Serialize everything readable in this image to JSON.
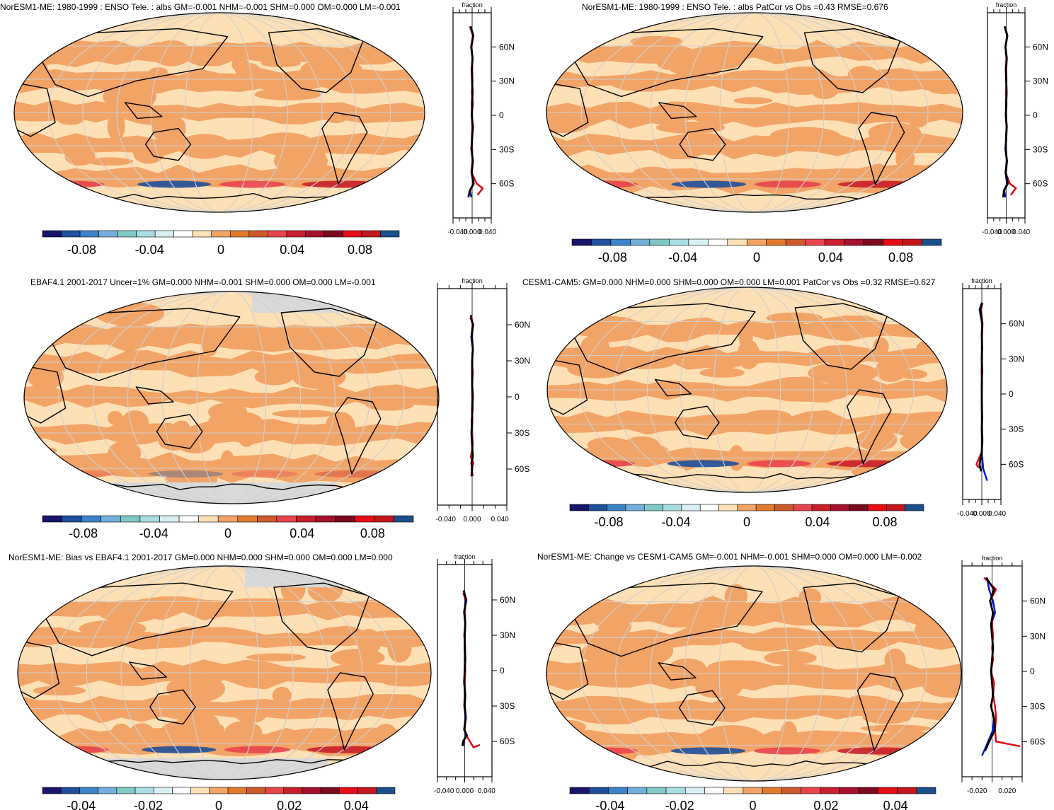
{
  "colorbar_colors": [
    "#18146b",
    "#1f4f9a",
    "#3c83c8",
    "#74aedc",
    "#7fc8c5",
    "#a8dde3",
    "#d8f0f4",
    "#ffffff",
    "#fde0b6",
    "#f2a366",
    "#e07b2c",
    "#ce5a2c",
    "#e8444c",
    "#c81f2a",
    "#a5112c",
    "#7c0a1f",
    "#e60d16",
    "#c4161d",
    "#1a4f8a"
  ],
  "map_fill_colors": {
    "light": "#fde0b6",
    "mid": "#f2a366",
    "ocean_frame": "#fde0b6",
    "missing": "#d9d9d9"
  },
  "line_colors": {
    "model": "#000000",
    "obs": "#e0000c",
    "alt": "#0012d6"
  },
  "panels": [
    {
      "id": "p1",
      "title": "NorESM1-ME: 1980-1999 : ENSO Tele. : albs GM=-0.001 NHM=-0.001 SHM=0.000 OM=0.000 LM=-0.001",
      "cb_labels": [
        "-0.08",
        "-0.04",
        "0",
        "0.04",
        "0.08"
      ],
      "zonal_unit": "fraction",
      "zonal_xticks": [
        "-0.040",
        "0.000",
        "0.040"
      ],
      "lat_labels": [
        "60N",
        "30N",
        "0",
        "30S",
        "60S"
      ],
      "chart_data": {
        "type": "line",
        "title": "NorESM1-ME: 1980-1999 : ENSO Tele. : albs GM=-0.001 NHM=-0.001 SHM=0.000 OM=0.000 LM=-0.001",
        "xlabel": "fraction",
        "xlim": [
          -0.05,
          0.05
        ],
        "ylim": [
          -90,
          90
        ],
        "series": [
          {
            "role": "model",
            "x": [
              -0.004,
              0.003,
              -0.002,
              0.001,
              -0.001,
              0.0,
              0.001,
              0.0,
              -0.001,
              0.001,
              0.0,
              -0.002,
              0.002,
              -0.001,
              0.004,
              -0.006,
              -0.01
            ],
            "y": [
              78,
              70,
              60,
              50,
              40,
              30,
              20,
              10,
              0,
              -10,
              -20,
              -30,
              -40,
              -50,
              -60,
              -66,
              -72
            ]
          },
          {
            "role": "obs",
            "x": [
              -0.006,
              0.002,
              -0.003,
              0.001,
              0.0,
              0.001,
              -0.001,
              0.002,
              -0.001,
              0.003,
              0.0,
              -0.001,
              0.001,
              -0.002,
              0.012,
              0.028,
              0.014
            ],
            "y": [
              78,
              70,
              60,
              50,
              40,
              30,
              20,
              10,
              0,
              -10,
              -20,
              -30,
              -40,
              -50,
              -60,
              -64,
              -70
            ]
          },
          {
            "role": "alt",
            "x": [
              -0.005,
              0.002,
              -0.002,
              0.001,
              0.0,
              0.0,
              0.001,
              -0.001,
              0.0,
              0.001,
              -0.001,
              0.0,
              0.001,
              -0.002,
              0.003,
              -0.006,
              -0.002
            ],
            "y": [
              78,
              70,
              60,
              50,
              40,
              30,
              20,
              10,
              0,
              -10,
              -20,
              -30,
              -40,
              -50,
              -60,
              -66,
              -72
            ]
          }
        ]
      }
    },
    {
      "id": "p2",
      "title": "NorESM1-ME: 1980-1999 : ENSO Tele. : albs PatCor vs Obs =0.43 RMSE=0.676",
      "cb_labels": [
        "-0.08",
        "-0.04",
        "0",
        "0.04",
        "0.08"
      ],
      "zonal_unit": "fraction",
      "zonal_xticks": [
        "-0.040",
        "0.000",
        "0.040"
      ],
      "lat_labels": [
        "60N",
        "30N",
        "0",
        "30S",
        "60S"
      ],
      "chart_data": {
        "type": "line",
        "title": "NorESM1-ME: 1980-1999 : ENSO Tele. : albs PatCor vs Obs =0.43 RMSE=0.676",
        "xlabel": "fraction",
        "xlim": [
          -0.05,
          0.05
        ],
        "ylim": [
          -90,
          90
        ],
        "series": [
          {
            "role": "model",
            "x": [
              -0.004,
              0.003,
              -0.002,
              0.001,
              -0.001,
              0.0,
              0.001,
              0.0,
              -0.001,
              0.001,
              0.0,
              -0.002,
              0.002,
              -0.001,
              0.004,
              -0.006,
              -0.008
            ],
            "y": [
              78,
              70,
              60,
              50,
              40,
              30,
              20,
              10,
              0,
              -10,
              -20,
              -30,
              -40,
              -50,
              -60,
              -66,
              -72
            ]
          },
          {
            "role": "obs",
            "x": [
              -0.005,
              0.003,
              -0.002,
              0.002,
              0.0,
              0.001,
              -0.001,
              0.001,
              -0.001,
              0.002,
              0.0,
              -0.001,
              0.002,
              -0.002,
              0.01,
              0.026,
              0.012
            ],
            "y": [
              78,
              70,
              60,
              50,
              40,
              30,
              20,
              10,
              0,
              -10,
              -20,
              -30,
              -40,
              -50,
              -60,
              -64,
              -70
            ]
          },
          {
            "role": "alt",
            "x": [
              -0.004,
              0.002,
              -0.002,
              0.001,
              0.0,
              0.0,
              0.001,
              -0.001,
              0.0,
              0.001,
              -0.001,
              0.0,
              0.001,
              -0.002,
              0.002,
              -0.005,
              -0.002
            ],
            "y": [
              78,
              70,
              60,
              50,
              40,
              30,
              20,
              10,
              0,
              -10,
              -20,
              -30,
              -40,
              -50,
              -60,
              -66,
              -72
            ]
          }
        ]
      }
    },
    {
      "id": "p3",
      "title": "EBAF4.1 2001-2017 Uncer=1% GM=0.000 NHM=-0.001 SHM=0.000 OM=0.000 LM=-0.001",
      "cb_labels": [
        "-0.08",
        "-0.04",
        "0",
        "0.04",
        "0.08"
      ],
      "zonal_unit": "fraction",
      "zonal_xticks": [
        "-0.040",
        "0.000",
        "0.040"
      ],
      "lat_labels": [
        "60N",
        "30N",
        "0",
        "30S",
        "60S"
      ],
      "chart_data": {
        "type": "line",
        "title": "EBAF4.1 2001-2017 Uncer=1% GM=0.000 NHM=-0.001 SHM=0.000 OM=0.000 LM=-0.001",
        "xlabel": "fraction",
        "xlim": [
          -0.05,
          0.05
        ],
        "ylim": [
          -90,
          90
        ],
        "series": [
          {
            "role": "model",
            "x": [
              -0.002,
              0.001,
              -0.001,
              0.001,
              0.0,
              0.0,
              0.0,
              0.001,
              0.0,
              0.0,
              -0.001,
              0.0,
              0.001,
              -0.001,
              0.0,
              -0.001
            ],
            "y": [
              68,
              60,
              50,
              40,
              30,
              20,
              10,
              0,
              -10,
              -20,
              -30,
              -40,
              -50,
              -55,
              -60,
              -66
            ]
          },
          {
            "role": "obs",
            "x": [
              -0.003,
              0.002,
              -0.001,
              0.001,
              0.0,
              0.001,
              0.0,
              0.0,
              0.001,
              -0.001,
              0.0,
              0.001,
              -0.002,
              0.002,
              -0.001,
              0.001
            ],
            "y": [
              66,
              60,
              50,
              40,
              30,
              20,
              10,
              0,
              -10,
              -20,
              -30,
              -40,
              -50,
              -55,
              -60,
              -66
            ]
          },
          {
            "role": "alt",
            "x": [
              -0.002,
              0.001,
              0.0,
              0.001,
              0.0,
              0.0,
              0.0,
              0.0,
              0.0,
              0.0,
              0.0,
              0.0,
              0.0,
              -0.001,
              0.0,
              -0.001
            ],
            "y": [
              66,
              60,
              50,
              40,
              30,
              20,
              10,
              0,
              -10,
              -20,
              -30,
              -40,
              -50,
              -55,
              -60,
              -66
            ]
          }
        ]
      }
    },
    {
      "id": "p4",
      "title": "CESM1-CAM5: GM=0.000 NHM=0.000 SHM=0.000 OM=0.000 LM=0.001 PatCor vs Obs =0.32 RMSE=0.627",
      "cb_labels": [
        "-0.08",
        "-0.04",
        "0",
        "0.04",
        "0.08"
      ],
      "zonal_unit": "fraction",
      "zonal_xticks": [
        "-0.040",
        "0.000",
        "0.040"
      ],
      "lat_labels": [
        "60N",
        "30N",
        "0",
        "30S",
        "60S"
      ],
      "chart_data": {
        "type": "line",
        "title": "CESM1-CAM5: GM=0.000 NHM=0.000 SHM=0.000 OM=0.000 LM=0.001 PatCor vs Obs =0.32 RMSE=0.627",
        "xlabel": "fraction",
        "xlim": [
          -0.05,
          0.05
        ],
        "ylim": [
          -90,
          90
        ],
        "series": [
          {
            "role": "model",
            "x": [
              0.001,
              -0.004,
              0.001,
              0.0,
              0.001,
              0.0,
              0.001,
              0.0,
              0.0,
              0.0,
              0.001,
              0.0,
              0.001,
              0.0,
              -0.006,
              -0.002
            ],
            "y": [
              78,
              72,
              60,
              50,
              40,
              30,
              20,
              10,
              0,
              -10,
              -20,
              -30,
              -40,
              -50,
              -60,
              -66
            ]
          },
          {
            "role": "obs",
            "x": [
              0.002,
              -0.002,
              0.002,
              0.001,
              0.0,
              0.001,
              -0.001,
              0.001,
              0.0,
              0.001,
              0.0,
              0.001,
              0.002,
              -0.001,
              -0.014,
              -0.008
            ],
            "y": [
              78,
              72,
              60,
              50,
              40,
              30,
              20,
              10,
              0,
              -10,
              -20,
              -30,
              -40,
              -50,
              -60,
              -63
            ]
          },
          {
            "role": "alt",
            "x": [
              0.0,
              -0.006,
              0.001,
              0.0,
              0.0,
              0.0,
              0.0,
              0.0,
              0.0,
              0.0,
              0.0,
              0.0,
              0.0,
              0.0,
              0.004,
              0.014
            ],
            "y": [
              78,
              72,
              60,
              50,
              40,
              30,
              20,
              10,
              0,
              -10,
              -20,
              -30,
              -40,
              -50,
              -64,
              -74
            ]
          }
        ]
      }
    },
    {
      "id": "p5",
      "title": "NorESM1-ME: Bias vs EBAF4.1 2001-2017 GM=0.000 NHM=0.000 SHM=0.000 OM=0.000 LM=0.000",
      "cb_labels": [
        "-0.04",
        "-0.02",
        "0",
        "0.02",
        "0.04"
      ],
      "zonal_unit": "fraction",
      "zonal_xticks": [
        "-0.040",
        "0.000",
        "0.040"
      ],
      "lat_labels": [
        "60N",
        "30N",
        "0",
        "30S",
        "60S"
      ],
      "chart_data": {
        "type": "line",
        "title": "NorESM1-ME: Bias vs EBAF4.1 2001-2017 GM=0.000 NHM=0.000 SHM=0.000 OM=0.000 LM=0.000",
        "xlabel": "fraction",
        "xlim": [
          -0.05,
          0.05
        ],
        "ylim": [
          -90,
          90
        ],
        "series": [
          {
            "role": "model",
            "x": [
              -0.002,
              0.003,
              -0.001,
              0.001,
              0.0,
              0.0,
              0.001,
              0.0,
              -0.001,
              0.001,
              0.0,
              0.002,
              -0.001,
              0.004,
              -0.003,
              -0.004
            ],
            "y": [
              68,
              60,
              50,
              40,
              30,
              20,
              10,
              0,
              -10,
              -20,
              -30,
              -40,
              -50,
              -55,
              -60,
              -64
            ]
          },
          {
            "role": "obs",
            "x": [
              -0.003,
              0.002,
              0.0,
              0.001,
              -0.001,
              0.001,
              0.0,
              0.001,
              0.0,
              0.0,
              -0.001,
              0.002,
              0.0,
              0.003,
              0.016,
              0.028
            ],
            "y": [
              66,
              60,
              50,
              40,
              30,
              20,
              10,
              0,
              -10,
              -20,
              -30,
              -40,
              -50,
              -55,
              -65,
              -63
            ]
          },
          {
            "role": "alt",
            "x": [
              -0.002,
              0.001,
              0.0,
              0.001,
              0.0,
              0.0,
              0.0,
              0.0,
              0.0,
              0.0,
              0.0,
              0.001,
              0.0,
              0.002,
              -0.002,
              -0.003
            ],
            "y": [
              66,
              60,
              50,
              40,
              30,
              20,
              10,
              0,
              -10,
              -20,
              -30,
              -40,
              -50,
              -55,
              -60,
              -64
            ]
          }
        ]
      }
    },
    {
      "id": "p6",
      "title": "NorESM1-ME: Change vs CESM1-CAM5 GM=-0.001 NHM=-0.001 SHM=0.000 OM=0.000 LM=-0.002",
      "cb_labels": [
        "-0.04",
        "-0.02",
        "0",
        "0.02",
        "0.04"
      ],
      "zonal_unit": "fraction",
      "zonal_xticks": [
        "-0.020",
        "0.020"
      ],
      "lat_labels": [
        "60N",
        "30N",
        "0",
        "30S",
        "60S"
      ],
      "chart_data": {
        "type": "line",
        "title": "NorESM1-ME: Change vs CESM1-CAM5 GM=-0.001 NHM=-0.001 SHM=0.000 OM=0.000 LM=-0.002",
        "xlabel": "fraction",
        "xlim": [
          -0.03,
          0.03
        ],
        "ylim": [
          -90,
          90
        ],
        "series": [
          {
            "role": "model",
            "x": [
              -0.006,
              0.002,
              -0.002,
              0.001,
              -0.001,
              0.0,
              0.001,
              0.0,
              -0.001,
              0.0,
              0.001,
              -0.001,
              0.002,
              0.003,
              -0.003,
              -0.007
            ],
            "y": [
              80,
              70,
              60,
              50,
              40,
              30,
              20,
              10,
              0,
              -10,
              -20,
              -30,
              -40,
              -50,
              -60,
              -68
            ]
          },
          {
            "role": "obs",
            "x": [
              -0.008,
              0.004,
              -0.002,
              0.001,
              0.0,
              0.001,
              0.0,
              0.001,
              -0.001,
              0.002,
              0.001,
              0.003,
              0.004,
              0.003,
              0.004,
              0.028
            ],
            "y": [
              80,
              70,
              60,
              50,
              40,
              30,
              20,
              10,
              0,
              -10,
              -20,
              -30,
              -40,
              -50,
              -60,
              -64
            ]
          },
          {
            "role": "alt",
            "x": [
              -0.005,
              -0.003,
              0.001,
              0.003,
              -0.001,
              0.0,
              0.001,
              0.0,
              -0.001,
              0.0,
              0.001,
              -0.001,
              0.002,
              0.001,
              -0.004,
              -0.01
            ],
            "y": [
              80,
              70,
              60,
              50,
              40,
              30,
              20,
              10,
              0,
              -10,
              -20,
              -30,
              -40,
              -50,
              -60,
              -72
            ]
          }
        ]
      }
    }
  ]
}
